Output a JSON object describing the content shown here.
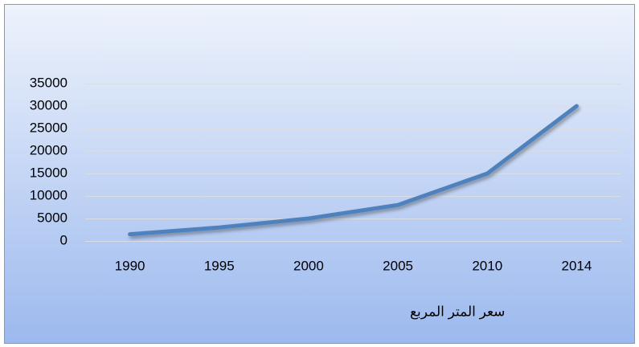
{
  "chart_data": {
    "type": "line",
    "categories": [
      "1990",
      "1995",
      "2000",
      "2005",
      "2010",
      "2014"
    ],
    "series": [
      {
        "name": "سعر المتر المربع",
        "color": "#4f81bd",
        "values": [
          1500,
          3000,
          5000,
          8000,
          15000,
          30000
        ]
      }
    ],
    "ylim": [
      0,
      35000
    ],
    "yticks": [
      0,
      5000,
      10000,
      15000,
      20000,
      25000,
      30000,
      35000
    ],
    "grid": true,
    "legend": "bottom"
  }
}
